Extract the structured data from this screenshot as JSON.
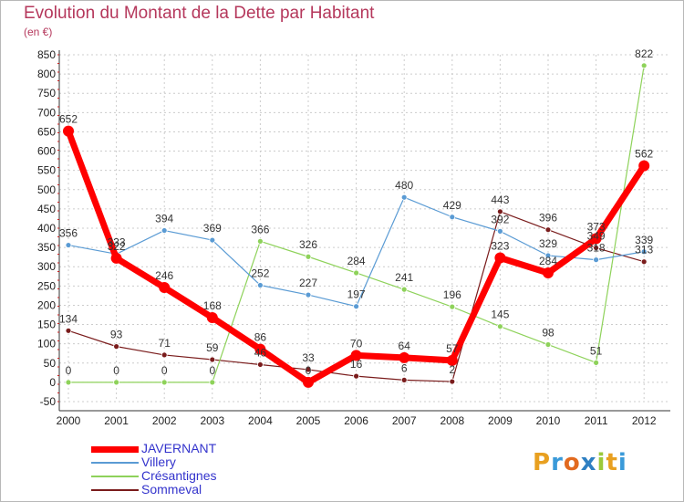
{
  "title": "Evolution du Montant de la Dette par Habitant",
  "subtitle": "(en €)",
  "logo": "Proxiti",
  "chart_data": {
    "type": "line",
    "title": "Evolution du Montant de la Dette par Habitant",
    "subtitle": "(en €)",
    "x": [
      "2000",
      "2001",
      "2002",
      "2003",
      "2004",
      "2005",
      "2006",
      "2007",
      "2008",
      "2009",
      "2010",
      "2011",
      "2012"
    ],
    "ylim": [
      -50,
      850
    ],
    "yticks": [
      -50,
      0,
      50,
      100,
      150,
      200,
      250,
      300,
      350,
      400,
      450,
      500,
      550,
      600,
      650,
      700,
      750,
      800,
      850
    ],
    "grid": true,
    "legend_position": "bottom-left",
    "series": [
      {
        "name": "JAVERNANT",
        "color": "#ff0000",
        "values": [
          652,
          322,
          246,
          168,
          86,
          0,
          70,
          64,
          57,
          323,
          284,
          373,
          562
        ]
      },
      {
        "name": "Villery",
        "color": "#5a9bd4",
        "values": [
          356,
          333,
          394,
          369,
          252,
          227,
          197,
          480,
          429,
          392,
          329,
          318,
          339
        ]
      },
      {
        "name": "Crésantignes",
        "color": "#8ed25a",
        "values": [
          0,
          0,
          0,
          0,
          366,
          326,
          284,
          241,
          196,
          145,
          98,
          51,
          822
        ]
      },
      {
        "name": "Sommeval",
        "color": "#7a1c1c",
        "values": [
          134,
          93,
          71,
          59,
          46,
          33,
          16,
          6,
          2,
          443,
          396,
          349,
          313
        ]
      }
    ]
  }
}
